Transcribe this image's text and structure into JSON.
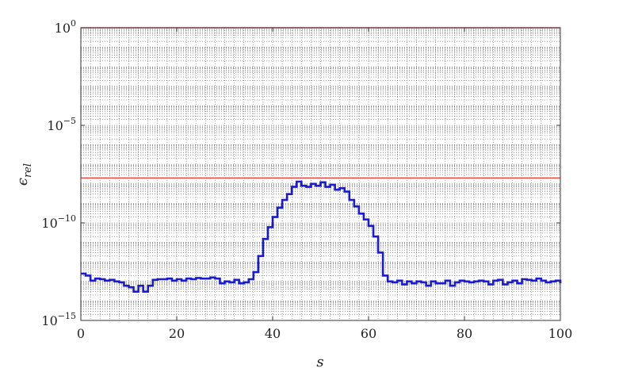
{
  "chart_data": {
    "type": "line",
    "title": "",
    "xlabel": "s",
    "ylabel": "ϵ_rel",
    "x_range": [
      0,
      100
    ],
    "y_range": [
      1e-15,
      1
    ],
    "y_scale": "log",
    "grid": "dotted minor grid on",
    "x_ticks": [
      0,
      20,
      40,
      60,
      80,
      100
    ],
    "y_ticks": [
      {
        "value": 1e-15,
        "base": "10",
        "exp": "−15"
      },
      {
        "value": 1e-10,
        "base": "10",
        "exp": "−10"
      },
      {
        "value": 1e-05,
        "base": "10",
        "exp": "−5"
      },
      {
        "value": 1,
        "base": "10",
        "exp": "0"
      }
    ],
    "thresholds": [
      {
        "value": 1,
        "color": "#e8473f"
      },
      {
        "value": 2e-08,
        "color": "#e8473f"
      }
    ],
    "series": [
      {
        "type": "step",
        "color": "#1a1ad0",
        "x": [
          0,
          1,
          2,
          3,
          4,
          5,
          6,
          7,
          8,
          9,
          10,
          11,
          12,
          13,
          14,
          15,
          16,
          17,
          18,
          19,
          20,
          21,
          22,
          23,
          24,
          25,
          26,
          27,
          28,
          29,
          30,
          31,
          32,
          33,
          34,
          35,
          36,
          37,
          38,
          39,
          40,
          41,
          42,
          43,
          44,
          45,
          46,
          47,
          48,
          49,
          50,
          51,
          52,
          53,
          54,
          55,
          56,
          57,
          58,
          59,
          60,
          61,
          62,
          63,
          64,
          65,
          66,
          67,
          68,
          69,
          70,
          71,
          72,
          73,
          74,
          75,
          76,
          77,
          78,
          79,
          80,
          81,
          82,
          83,
          84,
          85,
          86,
          87,
          88,
          89,
          90,
          91,
          92,
          93,
          94,
          95,
          96,
          97,
          98,
          99,
          100
        ],
        "y": [
          2.5e-13,
          2e-13,
          1.1e-13,
          1.4e-13,
          1.3e-13,
          1.1e-13,
          1.2e-13,
          1e-13,
          9e-14,
          6e-14,
          5e-14,
          3e-14,
          6e-14,
          3e-14,
          6e-14,
          1.2e-13,
          1.3e-13,
          1.3e-13,
          1.4e-13,
          1.1e-13,
          1.3e-13,
          1.1e-13,
          1.4e-13,
          1.3e-13,
          1.5e-13,
          1.4e-13,
          1.4e-13,
          1.6e-13,
          1.4e-13,
          8e-14,
          1e-13,
          9e-14,
          1.2e-13,
          8e-14,
          9e-14,
          1.3e-13,
          3e-13,
          2e-12,
          1.5e-11,
          6e-11,
          2e-10,
          6e-10,
          1.5e-09,
          3e-09,
          7e-09,
          1.3e-08,
          8e-09,
          7e-09,
          1e-08,
          8e-09,
          1.2e-08,
          7e-09,
          9e-09,
          5e-09,
          6e-09,
          4e-09,
          1.5e-09,
          7e-10,
          3e-10,
          1.5e-10,
          7e-11,
          2e-11,
          3e-12,
          2e-13,
          1e-13,
          9e-14,
          1.1e-13,
          7e-14,
          1e-13,
          8e-14,
          1e-13,
          9e-14,
          6e-14,
          1e-13,
          8e-14,
          8e-14,
          1.1e-13,
          6e-14,
          9e-14,
          1.1e-13,
          1e-13,
          9e-14,
          1e-13,
          1.1e-13,
          1e-13,
          7e-14,
          1.1e-13,
          1.2e-13,
          7e-14,
          9e-14,
          1.1e-13,
          8e-14,
          1.3e-13,
          1.2e-13,
          1.1e-13,
          1.4e-13,
          1.1e-13,
          9e-14,
          1e-13,
          1.1e-13,
          8e-14
        ]
      }
    ]
  }
}
